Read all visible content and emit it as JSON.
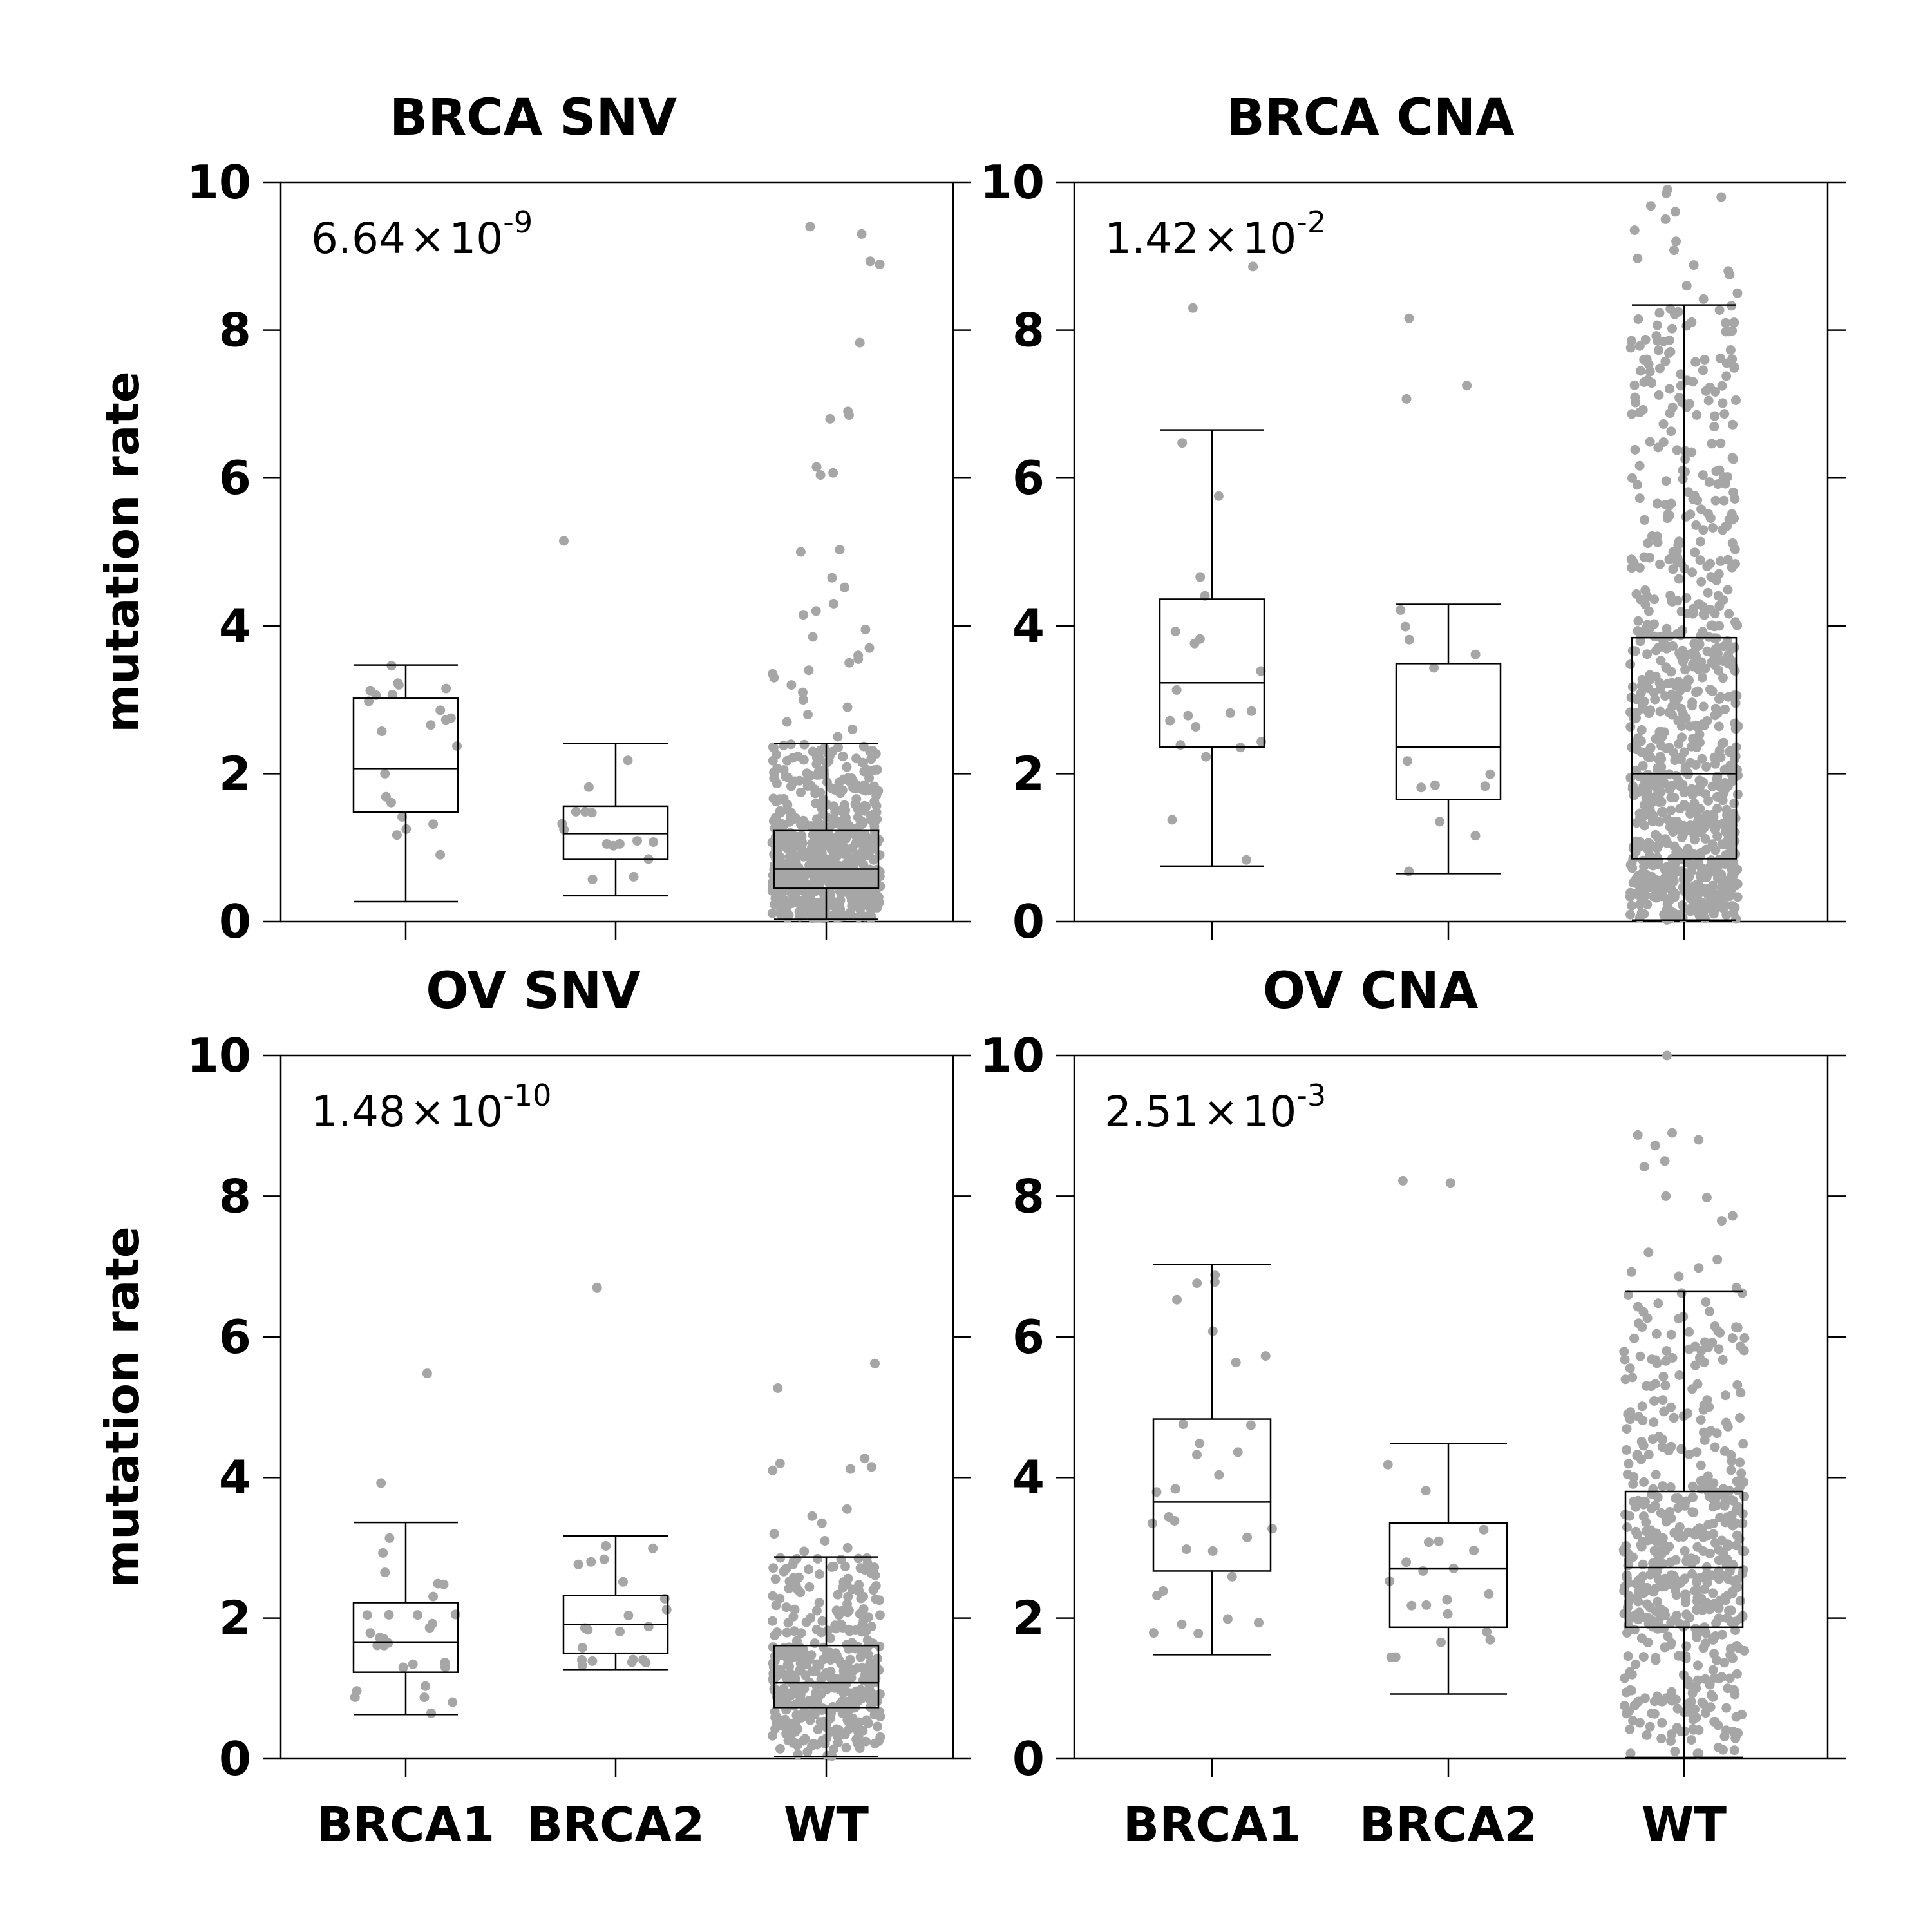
{
  "colors": {
    "points": "#a6a6a6",
    "lines": "#000000",
    "background": "#ffffff"
  },
  "chart_data": [
    {
      "type": "box",
      "title": "BRCA SNV",
      "annotation": {
        "mantissa": "6.64",
        "times": "×",
        "base": "10",
        "exponent": "-9"
      },
      "categories": [
        "BRCA1",
        "BRCA2",
        "WT"
      ],
      "ylabel": "mutation rate",
      "ylim": [
        0,
        10
      ],
      "yticks": [
        0,
        2,
        4,
        6,
        8,
        10
      ],
      "show_x_labels": false,
      "boxes": [
        {
          "category": "BRCA1",
          "whislo": 0.27,
          "q1": 1.48,
          "median": 2.07,
          "q3": 3.02,
          "whishi": 3.47,
          "n": 22,
          "fliers": []
        },
        {
          "category": "BRCA2",
          "whislo": 0.35,
          "q1": 0.84,
          "median": 1.19,
          "q3": 1.56,
          "whishi": 2.41,
          "n": 16,
          "fliers": [
            5.15
          ]
        },
        {
          "category": "WT",
          "whislo": 0.03,
          "q1": 0.45,
          "median": 0.71,
          "q3": 1.23,
          "whishi": 2.41,
          "n": 720,
          "fliers": [
            9.4,
            9.3,
            8.93,
            8.89,
            7.83,
            6.9,
            6.85,
            6.8,
            6.15,
            6.07,
            6.04,
            5.03,
            5.0,
            4.65,
            4.52,
            4.3,
            4.2,
            4.15,
            3.95,
            3.85,
            3.7,
            3.6,
            3.55,
            3.5,
            3.4,
            3.35,
            3.3,
            3.2,
            3.1,
            3.0,
            2.9,
            2.8,
            2.7,
            2.6,
            2.5
          ]
        }
      ]
    },
    {
      "type": "box",
      "title": "BRCA CNA",
      "annotation": {
        "mantissa": "1.42",
        "times": "×",
        "base": "10",
        "exponent": "-2"
      },
      "categories": [
        "BRCA1",
        "BRCA2",
        "WT"
      ],
      "ylabel": "",
      "ylim": [
        0,
        10
      ],
      "yticks": [
        0,
        2,
        4,
        6,
        8,
        10
      ],
      "show_x_labels": false,
      "boxes": [
        {
          "category": "BRCA1",
          "whislo": 0.75,
          "q1": 2.36,
          "median": 3.23,
          "q3": 4.36,
          "whishi": 6.65,
          "n": 22,
          "fliers": [
            8.86,
            8.3
          ]
        },
        {
          "category": "BRCA2",
          "whislo": 0.65,
          "q1": 1.65,
          "median": 2.36,
          "q3": 3.49,
          "whishi": 4.29,
          "n": 16,
          "fliers": [
            8.16,
            7.25,
            7.07
          ]
        },
        {
          "category": "WT",
          "whislo": 0.02,
          "q1": 0.85,
          "median": 2.0,
          "q3": 3.84,
          "whishi": 8.34,
          "n": 880,
          "fliers": [
            9.9,
            9.85,
            9.8,
            9.68,
            9.6,
            9.5,
            9.35,
            9.2,
            9.08,
            8.97,
            8.88,
            8.8,
            8.75,
            8.6,
            8.5,
            8.42
          ]
        }
      ]
    },
    {
      "type": "box",
      "title": "OV SNV",
      "annotation": {
        "mantissa": "1.48",
        "times": "×",
        "base": "10",
        "exponent": "-10"
      },
      "categories": [
        "BRCA1",
        "BRCA2",
        "WT"
      ],
      "ylabel": "mutation rate",
      "ylim": [
        0,
        10
      ],
      "yticks": [
        0,
        2,
        4,
        6,
        8,
        10
      ],
      "show_x_labels": true,
      "boxes": [
        {
          "category": "BRCA1",
          "whislo": 0.63,
          "q1": 1.23,
          "median": 1.66,
          "q3": 2.22,
          "whishi": 3.36,
          "n": 30,
          "fliers": [
            5.48,
            3.92
          ]
        },
        {
          "category": "BRCA2",
          "whislo": 1.27,
          "q1": 1.5,
          "median": 1.91,
          "q3": 2.32,
          "whishi": 3.17,
          "n": 22,
          "fliers": [
            6.7
          ]
        },
        {
          "category": "WT",
          "whislo": 0.03,
          "q1": 0.73,
          "median": 1.08,
          "q3": 1.61,
          "whishi": 2.87,
          "n": 420,
          "fliers": [
            5.62,
            5.27,
            4.27,
            4.2,
            4.15,
            4.12,
            4.1,
            3.55,
            3.45,
            3.35,
            3.2,
            3.1,
            3.0,
            2.95
          ]
        }
      ]
    },
    {
      "type": "box",
      "title": "OV CNA",
      "annotation": {
        "mantissa": "2.51",
        "times": "×",
        "base": "10",
        "exponent": "-3"
      },
      "categories": [
        "BRCA1",
        "BRCA2",
        "WT"
      ],
      "ylabel": "",
      "ylim": [
        0,
        10
      ],
      "yticks": [
        0,
        2,
        4,
        6,
        8,
        10
      ],
      "show_x_labels": true,
      "boxes": [
        {
          "category": "BRCA1",
          "whislo": 1.48,
          "q1": 2.67,
          "median": 3.65,
          "q3": 4.83,
          "whishi": 7.03,
          "n": 30,
          "fliers": []
        },
        {
          "category": "BRCA2",
          "whislo": 0.92,
          "q1": 1.87,
          "median": 2.7,
          "q3": 3.35,
          "whishi": 4.48,
          "n": 22,
          "fliers": [
            8.22,
            8.19
          ]
        },
        {
          "category": "WT",
          "whislo": 0.02,
          "q1": 1.87,
          "median": 2.72,
          "q3": 3.8,
          "whishi": 6.65,
          "n": 560,
          "fliers": [
            10.0,
            8.9,
            8.87,
            8.8,
            8.72,
            8.5,
            8.42,
            8.0,
            7.98,
            7.72,
            7.65,
            7.2,
            7.1,
            6.98,
            6.92,
            6.86,
            6.7
          ]
        }
      ]
    }
  ]
}
